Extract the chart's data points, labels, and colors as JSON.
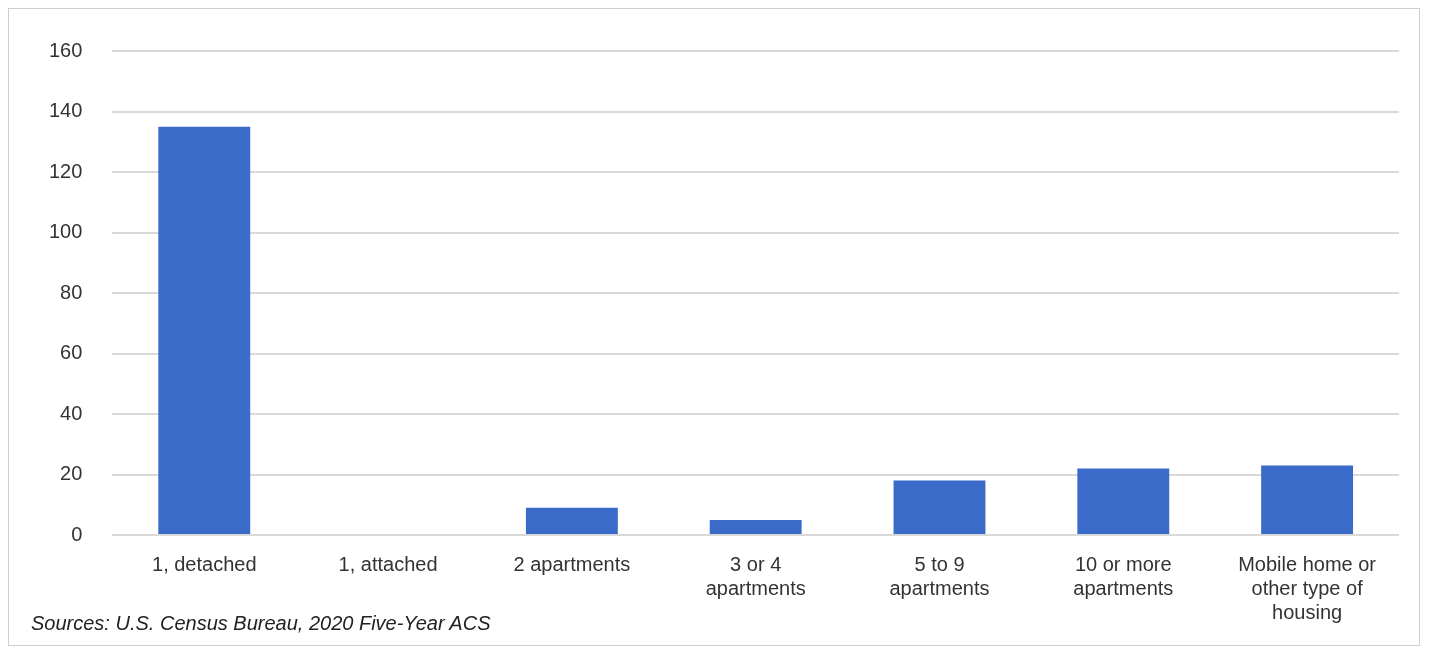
{
  "chart_data": {
    "type": "bar",
    "categories": [
      "1, detached",
      "1, attached",
      "2 apartments",
      "3 or 4 apartments",
      "5 to 9 apartments",
      "10 or more apartments",
      "Mobile home or other type of housing"
    ],
    "values": [
      135,
      0,
      9,
      5,
      18,
      22,
      23
    ],
    "color": "#3a6bc8",
    "ylim": [
      0,
      160
    ],
    "yticks": [
      0,
      20,
      40,
      60,
      80,
      100,
      120,
      140,
      160
    ],
    "grid": "y",
    "legend": false,
    "annotations": [
      "Sources: U.S. Census Bureau, 2020 Five-Year ACS"
    ]
  }
}
